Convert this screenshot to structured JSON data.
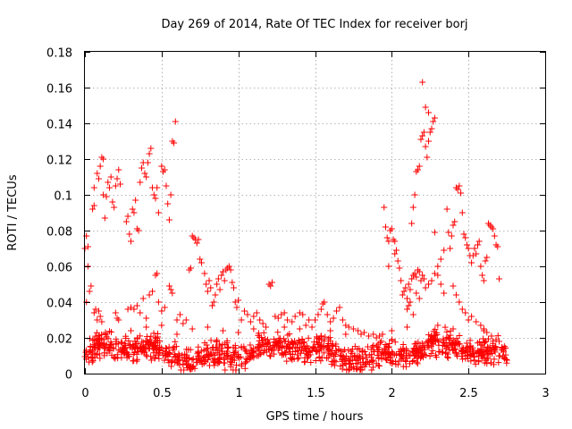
{
  "chart_data": {
    "type": "scatter",
    "title": "Day 269 of 2014, Rate Of TEC Index for receiver borj",
    "xlabel": "GPS time / hours",
    "ylabel": "ROTI / TECUs",
    "xlim": [
      0,
      3
    ],
    "ylim": [
      0,
      0.18
    ],
    "xticks": [
      0,
      0.5,
      1,
      1.5,
      2,
      2.5,
      3
    ],
    "xtick_labels": [
      "0",
      "0.5",
      "1",
      "1.5",
      "2",
      "2.5",
      "3"
    ],
    "yticks": [
      0,
      0.02,
      0.04,
      0.06,
      0.08,
      0.1,
      0.12,
      0.14,
      0.16,
      0.18
    ],
    "ytick_labels": [
      "0",
      "0.02",
      "0.04",
      "0.06",
      "0.08",
      "0.1",
      "0.12",
      "0.14",
      "0.16",
      "0.18"
    ],
    "grid": true,
    "marker": "+",
    "marker_color": "#ff0000",
    "series": [
      {
        "name": "ROTI",
        "points": [
          [
            0.0,
            0.07
          ],
          [
            0.01,
            0.077
          ],
          [
            0.02,
            0.071
          ],
          [
            0.02,
            0.06
          ],
          [
            0.01,
            0.04
          ],
          [
            0.03,
            0.046
          ],
          [
            0.04,
            0.049
          ],
          [
            0.05,
            0.092
          ],
          [
            0.06,
            0.094
          ],
          [
            0.06,
            0.104
          ],
          [
            0.08,
            0.112
          ],
          [
            0.09,
            0.109
          ],
          [
            0.1,
            0.116
          ],
          [
            0.11,
            0.121
          ],
          [
            0.12,
            0.12
          ],
          [
            0.12,
            0.1
          ],
          [
            0.13,
            0.087
          ],
          [
            0.14,
            0.099
          ],
          [
            0.15,
            0.107
          ],
          [
            0.16,
            0.104
          ],
          [
            0.17,
            0.11
          ],
          [
            0.18,
            0.096
          ],
          [
            0.19,
            0.093
          ],
          [
            0.2,
            0.105
          ],
          [
            0.21,
            0.109
          ],
          [
            0.22,
            0.114
          ],
          [
            0.23,
            0.106
          ],
          [
            0.06,
            0.034
          ],
          [
            0.07,
            0.036
          ],
          [
            0.08,
            0.03
          ],
          [
            0.09,
            0.035
          ],
          [
            0.1,
            0.032
          ],
          [
            0.11,
            0.029
          ],
          [
            0.2,
            0.034
          ],
          [
            0.21,
            0.031
          ],
          [
            0.22,
            0.03
          ],
          [
            0.27,
            0.085
          ],
          [
            0.28,
            0.088
          ],
          [
            0.29,
            0.078
          ],
          [
            0.3,
            0.074
          ],
          [
            0.31,
            0.092
          ],
          [
            0.32,
            0.09
          ],
          [
            0.33,
            0.097
          ],
          [
            0.34,
            0.081
          ],
          [
            0.35,
            0.08
          ],
          [
            0.36,
            0.107
          ],
          [
            0.37,
            0.115
          ],
          [
            0.38,
            0.118
          ],
          [
            0.39,
            0.112
          ],
          [
            0.4,
            0.11
          ],
          [
            0.41,
            0.118
          ],
          [
            0.42,
            0.123
          ],
          [
            0.43,
            0.126
          ],
          [
            0.44,
            0.104
          ],
          [
            0.45,
            0.1
          ],
          [
            0.46,
            0.098
          ],
          [
            0.47,
            0.104
          ],
          [
            0.48,
            0.09
          ],
          [
            0.5,
            0.116
          ],
          [
            0.51,
            0.113
          ],
          [
            0.52,
            0.114
          ],
          [
            0.53,
            0.105
          ],
          [
            0.54,
            0.095
          ],
          [
            0.55,
            0.086
          ],
          [
            0.56,
            0.1
          ],
          [
            0.57,
            0.13
          ],
          [
            0.58,
            0.129
          ],
          [
            0.59,
            0.141
          ],
          [
            0.28,
            0.036
          ],
          [
            0.3,
            0.037
          ],
          [
            0.32,
            0.036
          ],
          [
            0.34,
            0.038
          ],
          [
            0.36,
            0.034
          ],
          [
            0.38,
            0.042
          ],
          [
            0.4,
            0.031
          ],
          [
            0.42,
            0.044
          ],
          [
            0.44,
            0.046
          ],
          [
            0.46,
            0.055
          ],
          [
            0.47,
            0.056
          ],
          [
            0.48,
            0.04
          ],
          [
            0.5,
            0.035
          ],
          [
            0.52,
            0.037
          ],
          [
            0.55,
            0.049
          ],
          [
            0.56,
            0.047
          ],
          [
            0.57,
            0.045
          ],
          [
            0.6,
            0.03
          ],
          [
            0.62,
            0.033
          ],
          [
            0.64,
            0.028
          ],
          [
            0.66,
            0.03
          ],
          [
            0.68,
            0.058
          ],
          [
            0.69,
            0.059
          ],
          [
            0.7,
            0.077
          ],
          [
            0.71,
            0.076
          ],
          [
            0.72,
            0.075
          ],
          [
            0.73,
            0.073
          ],
          [
            0.74,
            0.075
          ],
          [
            0.75,
            0.064
          ],
          [
            0.76,
            0.062
          ],
          [
            0.78,
            0.056
          ],
          [
            0.79,
            0.05
          ],
          [
            0.8,
            0.046
          ],
          [
            0.81,
            0.052
          ],
          [
            0.82,
            0.048
          ],
          [
            0.83,
            0.038
          ],
          [
            0.84,
            0.04
          ],
          [
            0.85,
            0.044
          ],
          [
            0.86,
            0.05
          ],
          [
            0.87,
            0.053
          ],
          [
            0.88,
            0.047
          ],
          [
            0.89,
            0.055
          ],
          [
            0.9,
            0.057
          ],
          [
            0.91,
            0.052
          ],
          [
            0.92,
            0.058
          ],
          [
            0.93,
            0.059
          ],
          [
            0.94,
            0.06
          ],
          [
            0.95,
            0.058
          ],
          [
            0.96,
            0.051
          ],
          [
            0.97,
            0.048
          ],
          [
            0.98,
            0.04
          ],
          [
            0.99,
            0.037
          ],
          [
            1.0,
            0.041
          ],
          [
            1.02,
            0.03
          ],
          [
            1.04,
            0.035
          ],
          [
            1.06,
            0.033
          ],
          [
            1.08,
            0.029
          ],
          [
            1.1,
            0.032
          ],
          [
            1.12,
            0.034
          ],
          [
            1.14,
            0.03
          ],
          [
            1.16,
            0.028
          ],
          [
            1.18,
            0.026
          ],
          [
            1.2,
            0.05
          ],
          [
            1.21,
            0.049
          ],
          [
            1.22,
            0.051
          ],
          [
            1.24,
            0.032
          ],
          [
            1.26,
            0.031
          ],
          [
            1.28,
            0.033
          ],
          [
            1.3,
            0.034
          ],
          [
            1.32,
            0.03
          ],
          [
            1.35,
            0.029
          ],
          [
            1.37,
            0.032
          ],
          [
            1.4,
            0.034
          ],
          [
            1.42,
            0.033
          ],
          [
            1.44,
            0.027
          ],
          [
            1.46,
            0.03
          ],
          [
            1.48,
            0.026
          ],
          [
            1.5,
            0.03
          ],
          [
            1.52,
            0.033
          ],
          [
            1.54,
            0.036
          ],
          [
            1.55,
            0.039
          ],
          [
            1.56,
            0.04
          ],
          [
            1.58,
            0.033
          ],
          [
            1.6,
            0.029
          ],
          [
            1.62,
            0.031
          ],
          [
            1.64,
            0.035
          ],
          [
            1.66,
            0.037
          ],
          [
            1.68,
            0.03
          ],
          [
            1.7,
            0.027
          ],
          [
            1.72,
            0.026
          ],
          [
            1.75,
            0.025
          ],
          [
            1.78,
            0.024
          ],
          [
            1.8,
            0.022
          ],
          [
            1.82,
            0.023
          ],
          [
            1.85,
            0.021
          ],
          [
            1.88,
            0.022
          ],
          [
            1.9,
            0.02
          ],
          [
            1.92,
            0.021
          ],
          [
            1.94,
            0.022
          ],
          [
            1.95,
            0.093
          ],
          [
            1.96,
            0.082
          ],
          [
            1.97,
            0.076
          ],
          [
            1.98,
            0.074
          ],
          [
            1.99,
            0.08
          ],
          [
            2.0,
            0.081
          ],
          [
            2.01,
            0.075
          ],
          [
            2.02,
            0.074
          ],
          [
            2.03,
            0.069
          ],
          [
            2.04,
            0.063
          ],
          [
            2.02,
            0.067
          ],
          [
            2.05,
            0.059
          ],
          [
            1.98,
            0.06
          ],
          [
            2.06,
            0.052
          ],
          [
            2.07,
            0.044
          ],
          [
            2.08,
            0.046
          ],
          [
            2.09,
            0.048
          ],
          [
            2.1,
            0.042
          ],
          [
            2.11,
            0.05
          ],
          [
            2.12,
            0.047
          ],
          [
            2.13,
            0.053
          ],
          [
            2.14,
            0.055
          ],
          [
            2.15,
            0.056
          ],
          [
            2.16,
            0.054
          ],
          [
            2.17,
            0.058
          ],
          [
            2.18,
            0.057
          ],
          [
            2.19,
            0.052
          ],
          [
            2.2,
            0.055
          ],
          [
            2.21,
            0.053
          ],
          [
            2.13,
            0.084
          ],
          [
            2.14,
            0.093
          ],
          [
            2.15,
            0.1
          ],
          [
            2.16,
            0.113
          ],
          [
            2.17,
            0.114
          ],
          [
            2.18,
            0.116
          ],
          [
            2.19,
            0.131
          ],
          [
            2.2,
            0.133
          ],
          [
            2.21,
            0.135
          ],
          [
            2.22,
            0.127
          ],
          [
            2.23,
            0.121
          ],
          [
            2.24,
            0.13
          ],
          [
            2.25,
            0.135
          ],
          [
            2.26,
            0.137
          ],
          [
            2.27,
            0.141
          ],
          [
            2.28,
            0.143
          ],
          [
            2.2,
            0.163
          ],
          [
            2.22,
            0.149
          ],
          [
            2.24,
            0.146
          ],
          [
            2.1,
            0.036
          ],
          [
            2.11,
            0.038
          ],
          [
            2.12,
            0.04
          ],
          [
            2.14,
            0.033
          ],
          [
            2.16,
            0.045
          ],
          [
            2.18,
            0.042
          ],
          [
            2.22,
            0.048
          ],
          [
            2.24,
            0.05
          ],
          [
            2.26,
            0.052
          ],
          [
            2.28,
            0.056
          ],
          [
            2.3,
            0.06
          ],
          [
            2.32,
            0.064
          ],
          [
            2.34,
            0.069
          ],
          [
            2.28,
            0.079
          ],
          [
            2.3,
            0.055
          ],
          [
            2.32,
            0.05
          ],
          [
            2.34,
            0.045
          ],
          [
            2.36,
            0.092
          ],
          [
            2.37,
            0.079
          ],
          [
            2.38,
            0.07
          ],
          [
            2.39,
            0.077
          ],
          [
            2.4,
            0.083
          ],
          [
            2.41,
            0.085
          ],
          [
            2.42,
            0.104
          ],
          [
            2.43,
            0.103
          ],
          [
            2.44,
            0.105
          ],
          [
            2.45,
            0.101
          ],
          [
            2.46,
            0.09
          ],
          [
            2.47,
            0.078
          ],
          [
            2.48,
            0.076
          ],
          [
            2.49,
            0.072
          ],
          [
            2.5,
            0.07
          ],
          [
            2.51,
            0.066
          ],
          [
            2.52,
            0.062
          ],
          [
            2.53,
            0.066
          ],
          [
            2.54,
            0.07
          ],
          [
            2.55,
            0.067
          ],
          [
            2.56,
            0.072
          ],
          [
            2.57,
            0.074
          ],
          [
            2.58,
            0.06
          ],
          [
            2.59,
            0.055
          ],
          [
            2.6,
            0.052
          ],
          [
            2.61,
            0.063
          ],
          [
            2.62,
            0.065
          ],
          [
            2.63,
            0.084
          ],
          [
            2.64,
            0.083
          ],
          [
            2.65,
            0.082
          ],
          [
            2.66,
            0.081
          ],
          [
            2.67,
            0.077
          ],
          [
            2.68,
            0.072
          ],
          [
            2.69,
            0.071
          ],
          [
            2.7,
            0.053
          ],
          [
            2.4,
            0.049
          ],
          [
            2.42,
            0.044
          ],
          [
            2.44,
            0.04
          ],
          [
            2.46,
            0.036
          ],
          [
            2.48,
            0.034
          ],
          [
            2.5,
            0.03
          ],
          [
            2.52,
            0.032
          ],
          [
            2.55,
            0.029
          ],
          [
            2.58,
            0.027
          ],
          [
            2.6,
            0.025
          ],
          [
            2.62,
            0.023
          ],
          [
            2.65,
            0.021
          ],
          [
            2.68,
            0.019
          ],
          [
            2.7,
            0.018
          ],
          [
            0.3,
            0.024
          ],
          [
            0.4,
            0.026
          ],
          [
            0.5,
            0.027
          ],
          [
            0.6,
            0.022
          ],
          [
            0.7,
            0.025
          ],
          [
            0.8,
            0.026
          ],
          [
            0.9,
            0.024
          ],
          [
            1.0,
            0.023
          ],
          [
            1.1,
            0.025
          ],
          [
            1.3,
            0.026
          ],
          [
            1.4,
            0.025
          ],
          [
            1.6,
            0.024
          ],
          [
            1.7,
            0.022
          ],
          [
            2.0,
            0.024
          ],
          [
            2.1,
            0.026
          ],
          [
            2.3,
            0.027
          ],
          [
            2.4,
            0.025
          ],
          [
            2.6,
            0.024
          ]
        ],
        "dense_band": {
          "x_range": [
            0.0,
            2.76
          ],
          "y_center": 0.012,
          "y_spread": 0.009,
          "count": 1100
        }
      }
    ]
  }
}
